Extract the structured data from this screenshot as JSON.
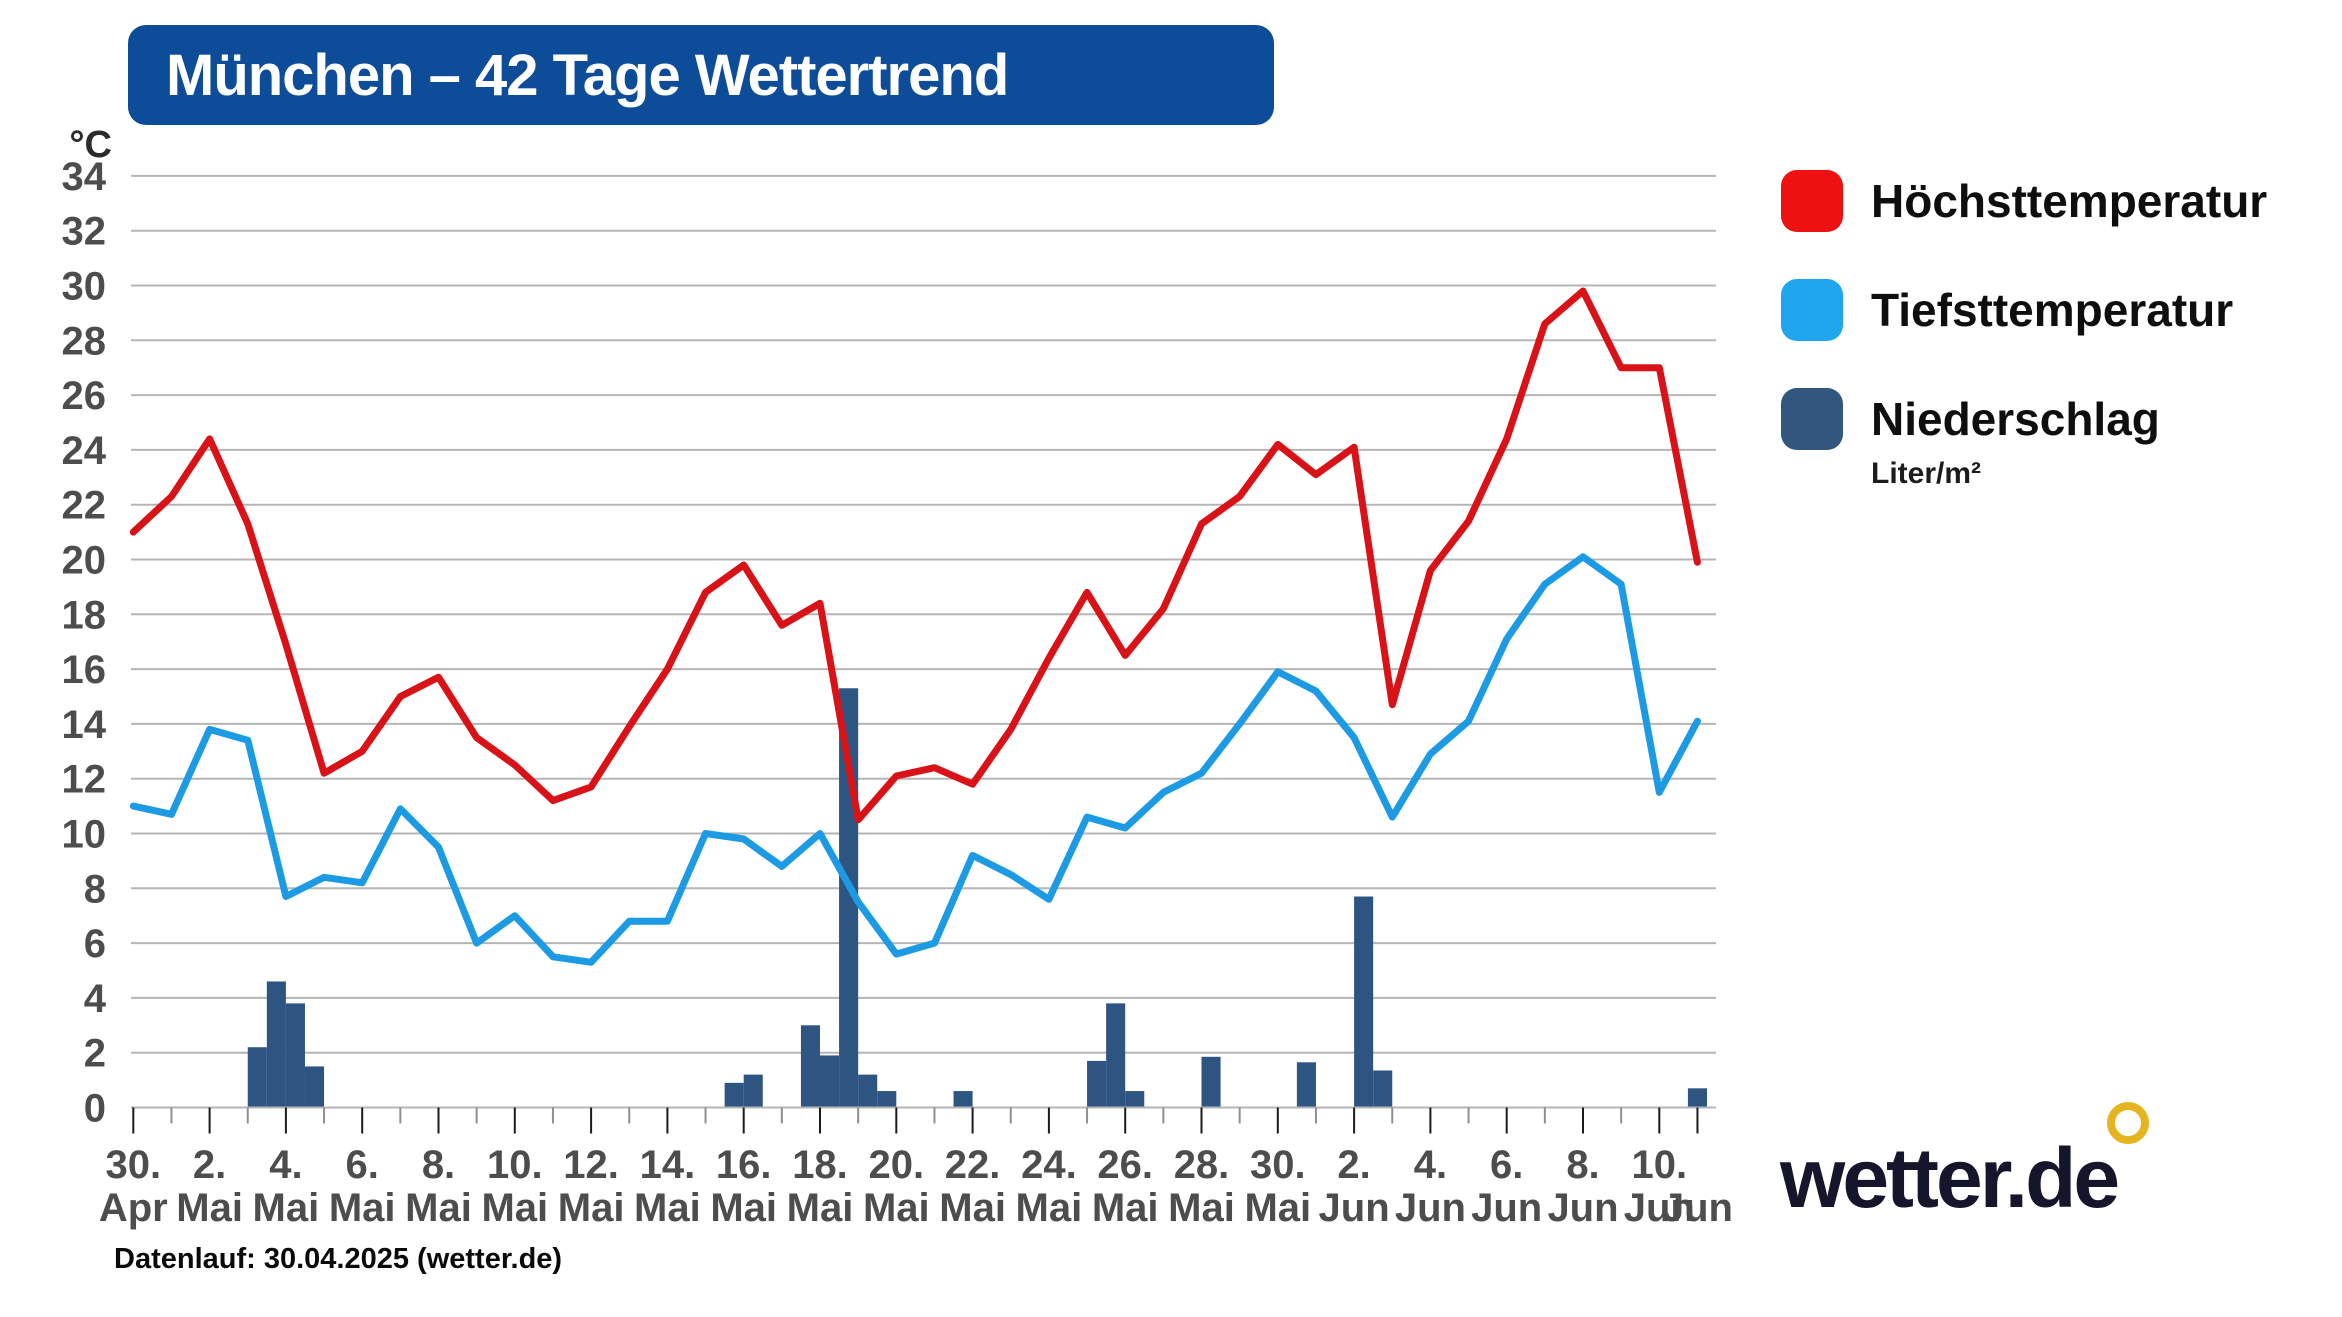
{
  "title": "München – 42 Tage Wettertrend",
  "y_axis": {
    "unit": "°C"
  },
  "legend": [
    {
      "label": "Höchsttemperatur",
      "color": "#ee1112"
    },
    {
      "label": "Tiefsttemperatur",
      "color": "#1fa6ee"
    },
    {
      "label": "Niederschlag",
      "sub": "Liter/m²",
      "color": "#33567f"
    }
  ],
  "footer": "Datenlauf: 30.04.2025 (wetter.de)",
  "logo": {
    "text": "wetter.de",
    "ring_color": "#e6b41f"
  },
  "chart_data": {
    "type": "line+bar",
    "title": "München – 42 Tage Wettertrend",
    "ylabel": "°C",
    "ylim": [
      0,
      34
    ],
    "y_step": 2,
    "grid": true,
    "legend_position": "right",
    "days_total": 42,
    "x_tick_labels": [
      {
        "i": 0,
        "day": "30.",
        "month": "Apr"
      },
      {
        "i": 2,
        "day": "2.",
        "month": "Mai"
      },
      {
        "i": 4,
        "day": "4.",
        "month": "Mai"
      },
      {
        "i": 6,
        "day": "6.",
        "month": "Mai"
      },
      {
        "i": 8,
        "day": "8.",
        "month": "Mai"
      },
      {
        "i": 10,
        "day": "10.",
        "month": "Mai"
      },
      {
        "i": 12,
        "day": "12.",
        "month": "Mai"
      },
      {
        "i": 14,
        "day": "14.",
        "month": "Mai"
      },
      {
        "i": 16,
        "day": "16.",
        "month": "Mai"
      },
      {
        "i": 18,
        "day": "18.",
        "month": "Mai"
      },
      {
        "i": 20,
        "day": "20.",
        "month": "Mai"
      },
      {
        "i": 22,
        "day": "22.",
        "month": "Mai"
      },
      {
        "i": 24,
        "day": "24.",
        "month": "Mai"
      },
      {
        "i": 26,
        "day": "26.",
        "month": "Mai"
      },
      {
        "i": 28,
        "day": "28.",
        "month": "Mai"
      },
      {
        "i": 30,
        "day": "30.",
        "month": "Mai"
      },
      {
        "i": 32,
        "day": "2.",
        "month": "Jun"
      },
      {
        "i": 34,
        "day": "4.",
        "month": "Jun"
      },
      {
        "i": 36,
        "day": "6.",
        "month": "Jun"
      },
      {
        "i": 38,
        "day": "8.",
        "month": "Jun"
      },
      {
        "i": 40,
        "day": "10.",
        "month": "Jun"
      },
      {
        "i": 41,
        "day": "",
        "month": "Jun"
      }
    ],
    "series": [
      {
        "name": "Höchsttemperatur",
        "type": "line",
        "color": "#d81217",
        "values": [
          21.0,
          22.3,
          24.4,
          21.3,
          16.9,
          12.2,
          13.0,
          15.0,
          15.7,
          13.5,
          12.5,
          11.2,
          11.7,
          13.9,
          16.0,
          18.8,
          19.8,
          17.6,
          18.4,
          10.5,
          12.1,
          12.4,
          11.8,
          13.8,
          16.4,
          18.8,
          16.5,
          18.2,
          21.3,
          22.3,
          24.2,
          23.1,
          24.1,
          14.7,
          19.6,
          21.4,
          24.4,
          28.6,
          29.8,
          27.0,
          27.0,
          19.9
        ]
      },
      {
        "name": "Tiefsttemperatur",
        "type": "line",
        "color": "#1c9be4",
        "values": [
          11.0,
          10.7,
          13.8,
          13.4,
          7.7,
          8.4,
          8.2,
          10.9,
          9.5,
          6.0,
          7.0,
          5.5,
          5.3,
          6.8,
          6.8,
          10.0,
          9.8,
          8.8,
          10.0,
          7.5,
          5.6,
          6.0,
          9.2,
          8.5,
          7.6,
          10.6,
          10.2,
          11.5,
          12.2,
          14.0,
          15.9,
          15.2,
          13.5,
          10.6,
          12.9,
          14.1,
          17.1,
          19.1,
          20.1,
          19.1,
          11.5,
          14.1
        ]
      },
      {
        "name": "Niederschlag",
        "type": "bar",
        "unit": "Liter/m²",
        "color": "#2e5482",
        "bar_width_days": 0.5,
        "points": [
          {
            "day": 3.0,
            "value": 2.2
          },
          {
            "day": 3.5,
            "value": 4.6
          },
          {
            "day": 4.0,
            "value": 3.8
          },
          {
            "day": 4.5,
            "value": 1.5
          },
          {
            "day": 15.5,
            "value": 0.9
          },
          {
            "day": 16.0,
            "value": 1.2
          },
          {
            "day": 17.5,
            "value": 3.0
          },
          {
            "day": 18.0,
            "value": 1.9
          },
          {
            "day": 18.5,
            "value": 15.3
          },
          {
            "day": 19.0,
            "value": 1.2
          },
          {
            "day": 19.5,
            "value": 0.6
          },
          {
            "day": 21.5,
            "value": 0.6
          },
          {
            "day": 25.0,
            "value": 1.7
          },
          {
            "day": 25.5,
            "value": 3.8
          },
          {
            "day": 26.0,
            "value": 0.6
          },
          {
            "day": 28.0,
            "value": 1.85
          },
          {
            "day": 30.5,
            "value": 1.65
          },
          {
            "day": 32.0,
            "value": 7.7
          },
          {
            "day": 32.5,
            "value": 1.35
          },
          {
            "day": 40.75,
            "value": 0.7
          }
        ]
      }
    ]
  }
}
